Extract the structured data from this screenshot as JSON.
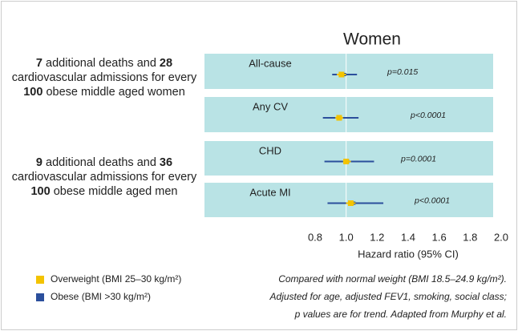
{
  "chart_data": {
    "type": "forest",
    "title": "Women",
    "categories": [
      "All-cause",
      "Any CV",
      "CHD",
      "Acute MI"
    ],
    "p_values": [
      "p=0.015",
      "p<0.0001",
      "p=0.0001",
      "p<0.0001"
    ],
    "series": [
      {
        "name": "Overweight (BMI 25–30 kg/m²)",
        "color": "#f3c300",
        "values": [
          0.97,
          0.955,
          1.0,
          1.03
        ],
        "lower": [
          0.94,
          0.93,
          0.98,
          1.0
        ],
        "upper": [
          1.0,
          0.98,
          1.03,
          1.06
        ]
      },
      {
        "name": "Obese (BMI >30 kg/m²)",
        "color": "#2b4f9c",
        "values": [
          0.99,
          0.96,
          1.01,
          1.05
        ],
        "lower": [
          0.91,
          0.85,
          0.86,
          0.88
        ],
        "upper": [
          1.07,
          1.08,
          1.18,
          1.24
        ]
      }
    ],
    "xlim": [
      0.8,
      2.0
    ],
    "xticks": [
      0.8,
      {
        "value": 1.0,
        "label": "1.0"
      },
      1.2,
      1.4,
      1.6,
      1.8,
      {
        "value": 2.0,
        "label": "2.0"
      }
    ],
    "reference_line": 1,
    "xlabel": "Hazard ratio (95% CI)",
    "notes": [
      [
        "7",
        " additional deaths and ",
        "28",
        " cardiovascular admissions for every ",
        "100",
        " obese middle aged women"
      ],
      [
        "9",
        " additional deaths and ",
        "36",
        " cardiovascular admissions for every ",
        "100",
        " obese middle aged men"
      ]
    ],
    "footnote": [
      "Compared with normal weight (BMI 18.5–24.9 kg/m²).",
      "Adjusted for age, adjusted FEV1, smoking, social class;",
      "p values are for trend. Adapted from Murphy et al."
    ]
  }
}
